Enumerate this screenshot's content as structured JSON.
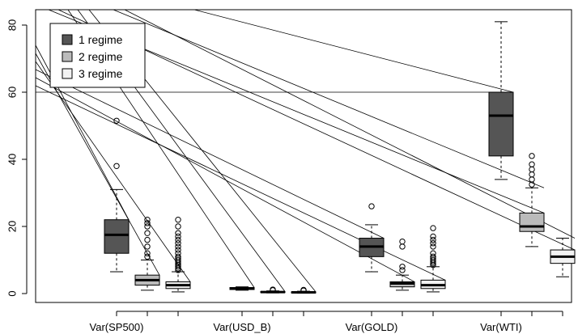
{
  "chart_data": {
    "type": "boxplot",
    "title": "",
    "xlabel": "",
    "ylabel": "",
    "ylim": [
      -4.5,
      84
    ],
    "y_ticks": [
      0,
      20,
      40,
      60,
      80
    ],
    "grid": false,
    "legend_placement": "top-left",
    "legend": [
      {
        "label": "1 regime",
        "color": "#555555"
      },
      {
        "label": "2 regime",
        "color": "#bbbbbb"
      },
      {
        "label": "3 regime",
        "color": "#f2f2f2"
      }
    ],
    "groups": [
      {
        "label": "Var(SP500)",
        "boxes": [
          {
            "regime": 1,
            "min": 6.5,
            "q1": 12,
            "median": 17.5,
            "q3": 22,
            "max": 31,
            "outliers": [
              38,
              51.5
            ]
          },
          {
            "regime": 2,
            "min": 1,
            "q1": 2.5,
            "median": 4,
            "q3": 5.5,
            "max": 10,
            "outliers": [
              11,
              12,
              14,
              16,
              18,
              20,
              21,
              22
            ]
          },
          {
            "regime": 3,
            "min": 0.5,
            "q1": 1.5,
            "median": 2.5,
            "q3": 3.5,
            "max": 6.5,
            "outliers": [
              7,
              7.5,
              8,
              8.5,
              9,
              9.5,
              10,
              10.5,
              11,
              12,
              13,
              14,
              15,
              16,
              17,
              18,
              20,
              22
            ]
          }
        ]
      },
      {
        "label": "Var(USD_B)",
        "boxes": [
          {
            "regime": 1,
            "min": 1,
            "q1": 1.2,
            "median": 1.5,
            "q3": 1.8,
            "max": 2,
            "outliers": []
          },
          {
            "regime": 2,
            "min": 0.2,
            "q1": 0.3,
            "median": 0.45,
            "q3": 0.6,
            "max": 0.8,
            "outliers": [
              1,
              1.2
            ]
          },
          {
            "regime": 3,
            "min": 0.1,
            "q1": 0.2,
            "median": 0.35,
            "q3": 0.5,
            "max": 0.7,
            "outliers": [
              0.9,
              1.1
            ]
          }
        ]
      },
      {
        "label": "Var(GOLD)",
        "boxes": [
          {
            "regime": 1,
            "min": 6.5,
            "q1": 11,
            "median": 14,
            "q3": 16.5,
            "max": 20.5,
            "outliers": [
              26
            ]
          },
          {
            "regime": 2,
            "min": 1,
            "q1": 2,
            "median": 3,
            "q3": 3.5,
            "max": 5.5,
            "outliers": [
              7,
              8,
              14,
              15.5
            ]
          },
          {
            "regime": 3,
            "min": 0.5,
            "q1": 1.5,
            "median": 2.5,
            "q3": 4,
            "max": 8,
            "outliers": [
              8.5,
              9,
              9.5,
              10,
              10.5,
              11,
              12,
              14,
              15,
              16,
              17,
              19.5
            ]
          }
        ]
      },
      {
        "label": "Var(WTI)",
        "boxes": [
          {
            "regime": 1,
            "min": 34,
            "q1": 41,
            "median": 53,
            "q3": 60,
            "max": 81,
            "outliers": []
          },
          {
            "regime": 2,
            "min": 14,
            "q1": 18.5,
            "median": 20,
            "q3": 24,
            "max": 31.5,
            "outliers": [
              32.5,
              34,
              35.5,
              37,
              38.5,
              41
            ]
          },
          {
            "regime": 3,
            "min": 5,
            "q1": 9,
            "median": 11,
            "q3": 13,
            "max": 16.5,
            "outliers": []
          }
        ]
      }
    ]
  },
  "colors": {
    "regime1": "#555555",
    "regime2": "#bbbbbb",
    "regime3": "#f2f2f2",
    "stroke": "#000000"
  }
}
